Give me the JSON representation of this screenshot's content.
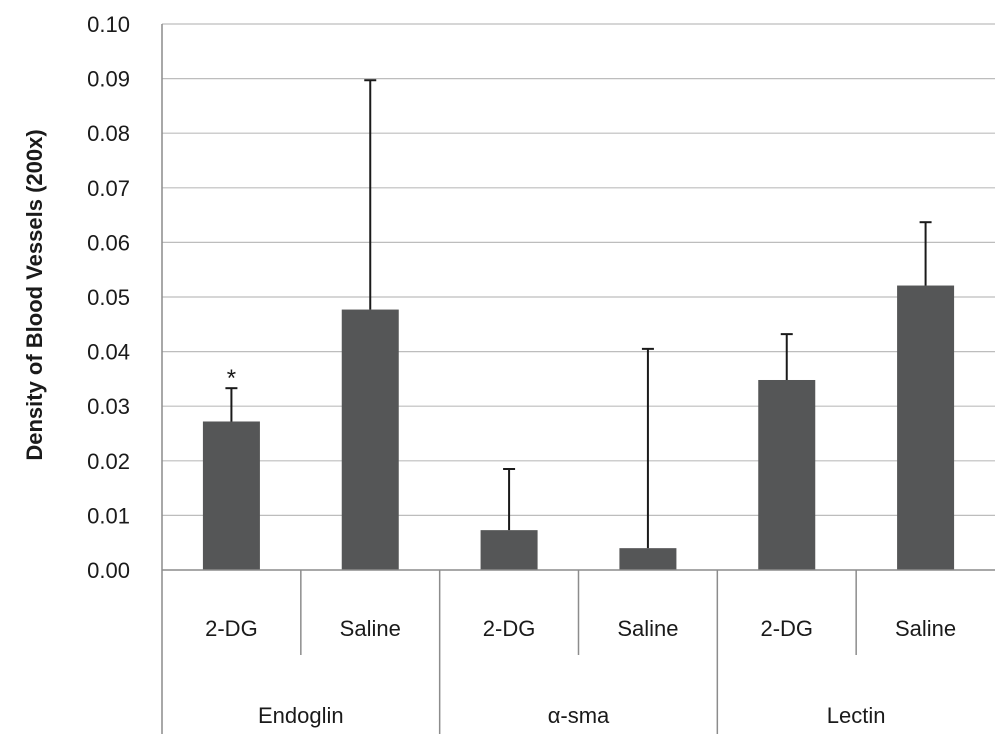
{
  "chart_data": {
    "type": "bar",
    "ylabel": "Density of Blood Vessels (200x)",
    "ylim": [
      0,
      0.1
    ],
    "yticks": [
      "0.00",
      "0.01",
      "0.02",
      "0.03",
      "0.04",
      "0.05",
      "0.06",
      "0.07",
      "0.08",
      "0.09",
      "0.10"
    ],
    "grid": true,
    "groups": [
      {
        "label": "Endoglin",
        "categories": [
          "2-DG",
          "Saline"
        ]
      },
      {
        "label": "α-sma",
        "categories": [
          "2-DG",
          "Saline"
        ]
      },
      {
        "label": "Lectin",
        "categories": [
          "2-DG",
          "Saline"
        ]
      }
    ],
    "categories": [
      "2-DG",
      "Saline",
      "2-DG",
      "Saline",
      "2-DG",
      "Saline"
    ],
    "values": [
      0.0272,
      0.0477,
      0.0073,
      0.004,
      0.0348,
      0.0521
    ],
    "error_upper": [
      0.0333,
      0.0897,
      0.0185,
      0.0405,
      0.0432,
      0.0637
    ],
    "annotations": [
      {
        "bar_index": 0,
        "text": "*"
      }
    ],
    "colors": {
      "bar": "#555657",
      "grid": "#bdbdbd",
      "axis": "#8c8c8c",
      "error": "#1a1a1a"
    }
  }
}
